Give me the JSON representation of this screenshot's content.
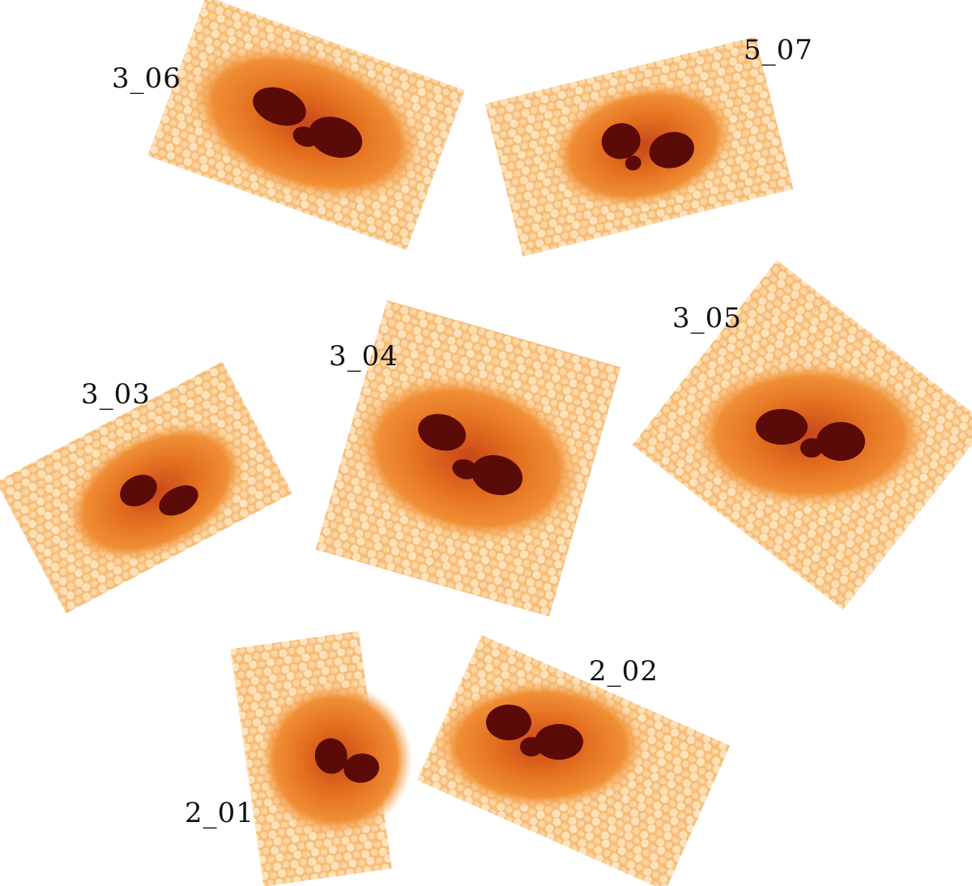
{
  "figure": {
    "panels": [
      {
        "label": "3_06"
      },
      {
        "label": "5_07"
      },
      {
        "label": "3_03"
      },
      {
        "label": "3_04"
      },
      {
        "label": "3_05"
      },
      {
        "label": "2_01"
      },
      {
        "label": "2_02"
      }
    ],
    "colors": {
      "photosphere": "#f9c27f",
      "granule_light": "#fde3bd",
      "penumbra": "#ef8a2a",
      "penumbra_dark": "#d9621a",
      "umbra": "#5a0a07",
      "label": "#111111"
    }
  }
}
